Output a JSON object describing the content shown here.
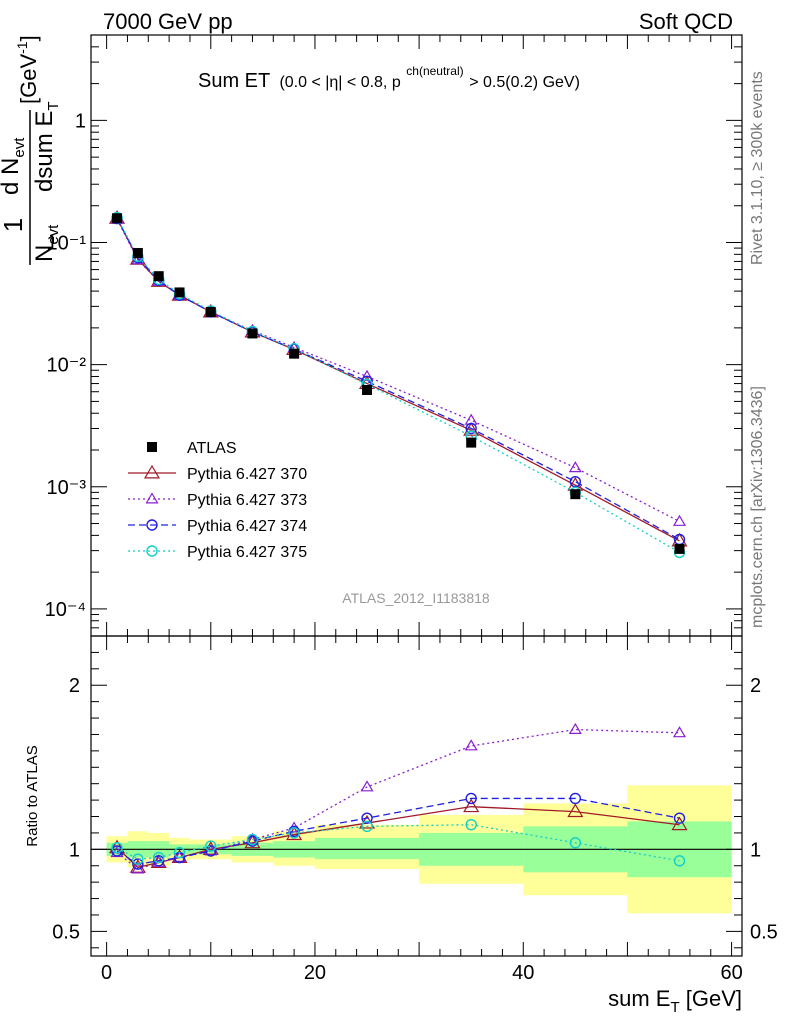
{
  "header": {
    "energy_label": "7000 GeV pp",
    "process_label": "Soft QCD"
  },
  "side": {
    "rivet_label": "Rivet 3.1.10, ≥ 300k events",
    "mcplots_label": "mcplots.cern.ch [arXiv:1306.3436]"
  },
  "watermark": "ATLAS_2012_I1183818",
  "colors": {
    "data": "#000000",
    "s370": "#a01a2a",
    "s373": "#8a1fd0",
    "s374": "#2020e0",
    "s375": "#10d0c8",
    "band_yellow": "#ffff99",
    "band_green": "#99ff99"
  },
  "chart_data": [
    {
      "type": "line",
      "scale": "log",
      "title_main": "Sum ET",
      "title_cut": "(0.0 < |η| < 0.8, p",
      "title_sup": "ch(neutral)",
      "title_tail": " > 0.5(0.2) GeV)",
      "ylabel_frac_top": "1",
      "ylabel_frac_bottom": "N",
      "ylabel_frac_bottom_sub": "evt",
      "ylabel_deriv_top": "d N",
      "ylabel_deriv_top_sub": "evt",
      "ylabel_deriv_bottom": "dsum E",
      "ylabel_deriv_bottom_sub": "T",
      "ylabel_unit": "[GeV",
      "ylabel_unit_sup": "-1",
      "ylabel_unit_close": "]",
      "xlim": [
        -1.5,
        61
      ],
      "ylim": [
        6e-05,
        5
      ],
      "y_tick_labels": [
        "10⁻⁴",
        "10⁻³",
        "10⁻²",
        "10⁻¹",
        "1"
      ],
      "y_tick_values": [
        0.0001,
        0.001,
        0.01,
        0.1,
        1
      ],
      "x": [
        1,
        3,
        5,
        7,
        10,
        14,
        18,
        25,
        35,
        45,
        55
      ],
      "series": [
        {
          "name": "ATLAS",
          "style": "data",
          "values": [
            0.158,
            0.082,
            0.053,
            0.039,
            0.027,
            0.018,
            0.0123,
            0.0062,
            0.0023,
            0.00087,
            0.00031
          ]
        },
        {
          "name": "Pythia 6.427 370",
          "style": "s370",
          "values": [
            0.158,
            0.073,
            0.048,
            0.037,
            0.027,
            0.0185,
            0.0133,
            0.007,
            0.0029,
            0.00103,
            0.00036
          ]
        },
        {
          "name": "Pythia 6.427 373",
          "style": "s373",
          "values": [
            0.155,
            0.072,
            0.048,
            0.037,
            0.027,
            0.019,
            0.0138,
            0.008,
            0.0035,
            0.00143,
            0.00052
          ]
        },
        {
          "name": "Pythia 6.427 374",
          "style": "s374",
          "values": [
            0.157,
            0.075,
            0.049,
            0.037,
            0.027,
            0.0185,
            0.0134,
            0.0073,
            0.003,
            0.0011,
            0.00037
          ]
        },
        {
          "name": "Pythia 6.427 375",
          "style": "s375",
          "values": [
            0.16,
            0.077,
            0.05,
            0.038,
            0.0275,
            0.0187,
            0.0135,
            0.0069,
            0.0026,
            0.0009,
            0.00029
          ]
        }
      ]
    },
    {
      "type": "line",
      "scale": "linear",
      "ylabel": "Ratio to ATLAS",
      "xlabel": "sum E",
      "xlabel_sub": "T",
      "xlabel_unit": " [GeV]",
      "xlim": [
        -1.5,
        61
      ],
      "ylim": [
        0.35,
        2.3
      ],
      "x_tick_values": [
        0,
        20,
        40,
        60
      ],
      "x_tick_labels": [
        "0",
        "20",
        "40",
        "60"
      ],
      "y_tick_values": [
        0.5,
        1,
        2
      ],
      "y_tick_labels": [
        "0.5",
        "1",
        "2"
      ],
      "bins": [
        [
          0,
          2
        ],
        [
          2,
          4
        ],
        [
          4,
          6
        ],
        [
          6,
          8
        ],
        [
          8,
          12
        ],
        [
          12,
          16
        ],
        [
          16,
          20
        ],
        [
          20,
          30
        ],
        [
          30,
          40
        ],
        [
          40,
          50
        ],
        [
          50,
          60
        ]
      ],
      "band_yellow": [
        [
          0.92,
          1.08
        ],
        [
          0.89,
          1.11
        ],
        [
          0.9,
          1.1
        ],
        [
          0.93,
          1.07
        ],
        [
          0.94,
          1.06
        ],
        [
          0.92,
          1.08
        ],
        [
          0.9,
          1.11
        ],
        [
          0.88,
          1.15
        ],
        [
          0.79,
          1.21
        ],
        [
          0.72,
          1.28
        ],
        [
          0.61,
          1.39
        ]
      ],
      "band_green": [
        [
          0.96,
          1.04
        ],
        [
          0.95,
          1.05
        ],
        [
          0.95,
          1.05
        ],
        [
          0.97,
          1.03
        ],
        [
          0.97,
          1.03
        ],
        [
          0.96,
          1.04
        ],
        [
          0.95,
          1.05
        ],
        [
          0.94,
          1.07
        ],
        [
          0.9,
          1.1
        ],
        [
          0.86,
          1.14
        ],
        [
          0.83,
          1.17
        ]
      ],
      "x": [
        1,
        3,
        5,
        7,
        10,
        14,
        18,
        25,
        35,
        45,
        55
      ],
      "series": [
        {
          "name": "Pythia 6.427 370",
          "style": "s370",
          "values": [
            1.01,
            0.89,
            0.92,
            0.95,
            1.0,
            1.04,
            1.09,
            1.16,
            1.26,
            1.23,
            1.15
          ]
        },
        {
          "name": "Pythia 6.427 373",
          "style": "s373",
          "values": [
            0.98,
            0.88,
            0.92,
            0.95,
            0.99,
            1.06,
            1.13,
            1.38,
            1.63,
            1.73,
            1.71
          ]
        },
        {
          "name": "Pythia 6.427 374",
          "style": "s374",
          "values": [
            0.99,
            0.91,
            0.93,
            0.95,
            0.99,
            1.05,
            1.11,
            1.19,
            1.31,
            1.31,
            1.19
          ]
        },
        {
          "name": "Pythia 6.427 375",
          "style": "s375",
          "values": [
            1.01,
            0.94,
            0.95,
            0.98,
            1.02,
            1.06,
            1.1,
            1.14,
            1.15,
            1.04,
            0.93
          ]
        }
      ]
    }
  ]
}
